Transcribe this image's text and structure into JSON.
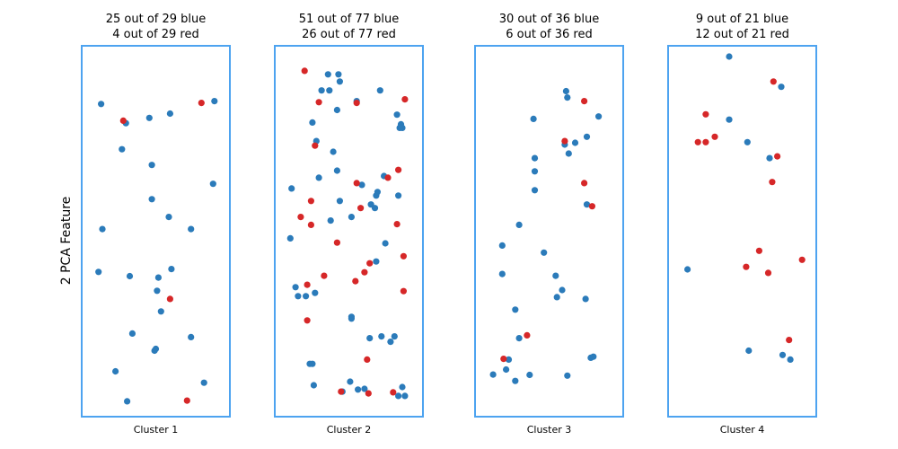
{
  "colors": {
    "blue": "#2b7bba",
    "red": "#d62728",
    "frame": "#4da3f0"
  },
  "chart_data": {
    "type": "scatter",
    "ylabel": "2 PCA Feature",
    "xlim": [
      0,
      1
    ],
    "ylim": [
      0,
      1
    ],
    "panels": [
      {
        "title1": "25 out of 29 blue",
        "title2": "4 out of 29 red",
        "xlabel": "Cluster 1",
        "blue": [
          [
            0.08,
            0.857
          ],
          [
            0.27,
            0.803
          ],
          [
            0.45,
            0.818
          ],
          [
            0.61,
            0.83
          ],
          [
            0.95,
            0.865
          ],
          [
            0.24,
            0.73
          ],
          [
            0.47,
            0.686
          ],
          [
            0.94,
            0.633
          ],
          [
            0.47,
            0.59
          ],
          [
            0.6,
            0.54
          ],
          [
            0.09,
            0.506
          ],
          [
            0.77,
            0.506
          ],
          [
            0.06,
            0.386
          ],
          [
            0.3,
            0.374
          ],
          [
            0.52,
            0.37
          ],
          [
            0.62,
            0.394
          ],
          [
            0.51,
            0.333
          ],
          [
            0.54,
            0.275
          ],
          [
            0.32,
            0.213
          ],
          [
            0.77,
            0.203
          ],
          [
            0.49,
            0.165
          ],
          [
            0.5,
            0.17
          ],
          [
            0.19,
            0.107
          ],
          [
            0.87,
            0.075
          ],
          [
            0.28,
            0.023
          ]
        ],
        "red": [
          [
            0.25,
            0.81
          ],
          [
            0.85,
            0.86
          ],
          [
            0.61,
            0.31
          ],
          [
            0.74,
            0.025
          ]
        ]
      },
      {
        "title1": "51 out of 77 blue",
        "title2": "26 out of 77 red",
        "xlabel": "Cluster 2",
        "blue": [
          [
            0.34,
            0.94
          ],
          [
            0.42,
            0.94
          ],
          [
            0.43,
            0.92
          ],
          [
            0.29,
            0.895
          ],
          [
            0.35,
            0.895
          ],
          [
            0.74,
            0.895
          ],
          [
            0.56,
            0.865
          ],
          [
            0.41,
            0.84
          ],
          [
            0.87,
            0.827
          ],
          [
            0.22,
            0.805
          ],
          [
            0.9,
            0.8
          ],
          [
            0.91,
            0.79
          ],
          [
            0.89,
            0.79
          ],
          [
            0.25,
            0.753
          ],
          [
            0.38,
            0.723
          ],
          [
            0.41,
            0.67
          ],
          [
            0.27,
            0.65
          ],
          [
            0.6,
            0.63
          ],
          [
            0.77,
            0.655
          ],
          [
            0.06,
            0.62
          ],
          [
            0.71,
            0.6
          ],
          [
            0.43,
            0.585
          ],
          [
            0.88,
            0.6
          ],
          [
            0.72,
            0.61
          ],
          [
            0.67,
            0.575
          ],
          [
            0.7,
            0.565
          ],
          [
            0.36,
            0.53
          ],
          [
            0.52,
            0.54
          ],
          [
            0.05,
            0.48
          ],
          [
            0.78,
            0.466
          ],
          [
            0.71,
            0.415
          ],
          [
            0.09,
            0.343
          ],
          [
            0.11,
            0.318
          ],
          [
            0.17,
            0.318
          ],
          [
            0.24,
            0.327
          ],
          [
            0.52,
            0.26
          ],
          [
            0.52,
            0.255
          ],
          [
            0.66,
            0.2
          ],
          [
            0.75,
            0.205
          ],
          [
            0.82,
            0.19
          ],
          [
            0.85,
            0.205
          ],
          [
            0.2,
            0.128
          ],
          [
            0.22,
            0.128
          ],
          [
            0.23,
            0.068
          ],
          [
            0.51,
            0.078
          ],
          [
            0.57,
            0.056
          ],
          [
            0.62,
            0.058
          ],
          [
            0.45,
            0.05
          ],
          [
            0.88,
            0.038
          ],
          [
            0.93,
            0.038
          ],
          [
            0.91,
            0.063
          ]
        ],
        "red": [
          [
            0.16,
            0.95
          ],
          [
            0.27,
            0.862
          ],
          [
            0.56,
            0.86
          ],
          [
            0.93,
            0.87
          ],
          [
            0.24,
            0.74
          ],
          [
            0.56,
            0.635
          ],
          [
            0.88,
            0.672
          ],
          [
            0.8,
            0.65
          ],
          [
            0.21,
            0.585
          ],
          [
            0.59,
            0.565
          ],
          [
            0.13,
            0.54
          ],
          [
            0.21,
            0.518
          ],
          [
            0.87,
            0.52
          ],
          [
            0.41,
            0.468
          ],
          [
            0.66,
            0.41
          ],
          [
            0.31,
            0.375
          ],
          [
            0.62,
            0.385
          ],
          [
            0.92,
            0.43
          ],
          [
            0.55,
            0.36
          ],
          [
            0.18,
            0.35
          ],
          [
            0.92,
            0.332
          ],
          [
            0.18,
            0.25
          ],
          [
            0.64,
            0.14
          ],
          [
            0.44,
            0.05
          ],
          [
            0.65,
            0.045
          ],
          [
            0.84,
            0.048
          ]
        ]
      },
      {
        "title1": "30 out of 36 blue",
        "title2": "6 out of 36 red",
        "xlabel": "Cluster 3",
        "blue": [
          [
            0.63,
            0.893
          ],
          [
            0.64,
            0.875
          ],
          [
            0.88,
            0.822
          ],
          [
            0.38,
            0.815
          ],
          [
            0.79,
            0.765
          ],
          [
            0.7,
            0.748
          ],
          [
            0.62,
            0.743
          ],
          [
            0.65,
            0.718
          ],
          [
            0.39,
            0.705
          ],
          [
            0.39,
            0.668
          ],
          [
            0.39,
            0.615
          ],
          [
            0.79,
            0.575
          ],
          [
            0.27,
            0.518
          ],
          [
            0.14,
            0.46
          ],
          [
            0.46,
            0.44
          ],
          [
            0.14,
            0.38
          ],
          [
            0.55,
            0.375
          ],
          [
            0.6,
            0.335
          ],
          [
            0.56,
            0.315
          ],
          [
            0.78,
            0.31
          ],
          [
            0.24,
            0.28
          ],
          [
            0.27,
            0.2
          ],
          [
            0.19,
            0.14
          ],
          [
            0.17,
            0.112
          ],
          [
            0.07,
            0.098
          ],
          [
            0.24,
            0.08
          ],
          [
            0.35,
            0.097
          ],
          [
            0.64,
            0.095
          ],
          [
            0.82,
            0.145
          ],
          [
            0.84,
            0.148
          ]
        ],
        "red": [
          [
            0.77,
            0.865
          ],
          [
            0.62,
            0.753
          ],
          [
            0.77,
            0.635
          ],
          [
            0.83,
            0.57
          ],
          [
            0.33,
            0.208
          ],
          [
            0.15,
            0.142
          ]
        ]
      },
      {
        "title1": "9 out of 21 blue",
        "title2": "12 out of 21 red",
        "xlabel": "Cluster 4",
        "blue": [
          [
            0.4,
            0.99
          ],
          [
            0.8,
            0.905
          ],
          [
            0.4,
            0.813
          ],
          [
            0.54,
            0.75
          ],
          [
            0.71,
            0.705
          ],
          [
            0.08,
            0.393
          ],
          [
            0.55,
            0.165
          ],
          [
            0.81,
            0.153
          ],
          [
            0.87,
            0.14
          ]
        ],
        "red": [
          [
            0.74,
            0.92
          ],
          [
            0.22,
            0.828
          ],
          [
            0.29,
            0.765
          ],
          [
            0.16,
            0.75
          ],
          [
            0.22,
            0.75
          ],
          [
            0.77,
            0.71
          ],
          [
            0.73,
            0.638
          ],
          [
            0.63,
            0.445
          ],
          [
            0.53,
            0.4
          ],
          [
            0.7,
            0.383
          ],
          [
            0.96,
            0.42
          ],
          [
            0.86,
            0.195
          ]
        ]
      }
    ]
  }
}
